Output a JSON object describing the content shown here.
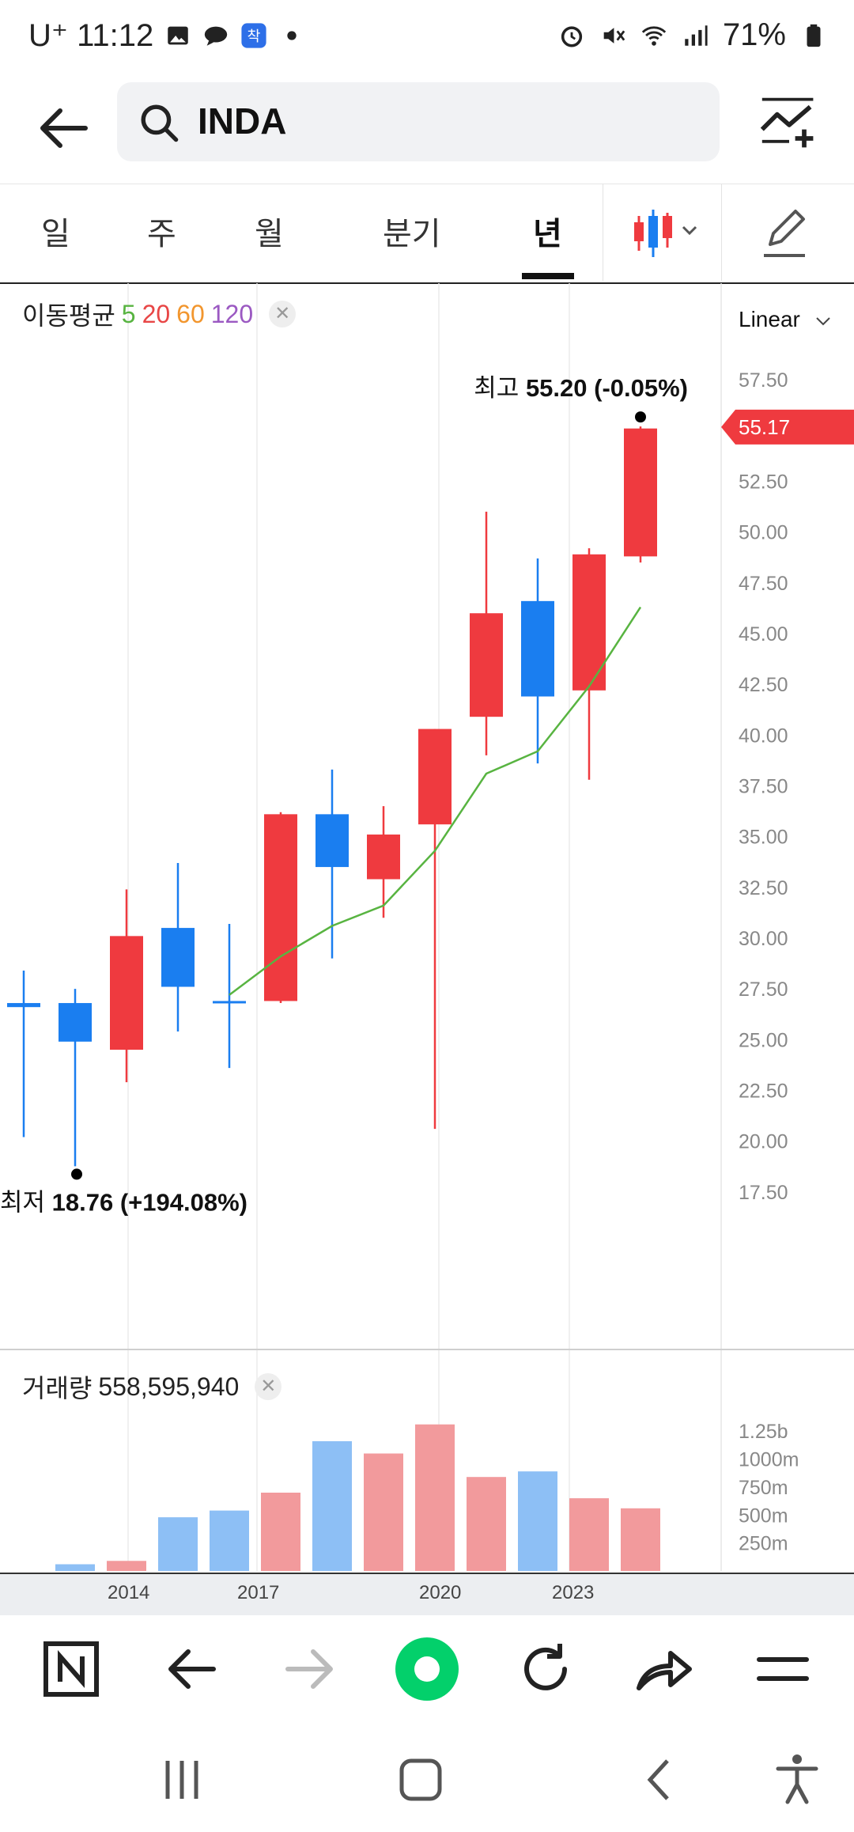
{
  "status": {
    "carrier": "U⁺ 11:12",
    "battery": "71%",
    "colors": {
      "text": "#222222"
    }
  },
  "search": {
    "query": "INDA"
  },
  "periods": [
    {
      "label": "일",
      "active": false
    },
    {
      "label": "주",
      "active": false
    },
    {
      "label": "월",
      "active": false
    },
    {
      "label": "분기",
      "active": false
    },
    {
      "label": "년",
      "active": true
    }
  ],
  "ma_legend": {
    "label": "이동평균",
    "p5": "5",
    "p20": "20",
    "p60": "60",
    "p120": "120",
    "colors": {
      "ma5": "#58b441",
      "ma20": "#e84646",
      "ma60": "#f2962e",
      "ma120": "#9b59c2"
    }
  },
  "scale_mode": "Linear",
  "price_annotations": {
    "high_label": "최고",
    "high_value": "55.20 (-0.05%)",
    "low_label": "최저",
    "low_value": "18.76 (+194.08%)",
    "current_price": "55.17"
  },
  "volume_legend": {
    "label": "거래량",
    "value": "558,595,940"
  },
  "x_axis_labels": [
    "2014",
    "2017",
    "2020",
    "2023"
  ],
  "chart_data": {
    "type": "candlestick",
    "colors": {
      "up": "#ef3a3f",
      "down": "#1a7ef0",
      "ma5": "#58b441",
      "vol_up": "#f29a9c",
      "vol_down": "#8dbff5"
    },
    "price_axis": {
      "ticks": [
        "17.50",
        "20.00",
        "22.50",
        "25.00",
        "27.50",
        "30.00",
        "32.50",
        "35.00",
        "37.50",
        "40.00",
        "42.50",
        "45.00",
        "47.50",
        "50.00",
        "52.50",
        "55.00",
        "57.50"
      ],
      "ylim": [
        16.75,
        58.75
      ]
    },
    "candles": [
      {
        "open": 26.8,
        "close": 26.6,
        "high": 28.4,
        "low": 20.2
      },
      {
        "open": 26.8,
        "close": 24.9,
        "high": 27.5,
        "low": 18.76
      },
      {
        "open": 24.5,
        "close": 30.1,
        "high": 32.4,
        "low": 22.9
      },
      {
        "open": 30.5,
        "close": 27.6,
        "high": 33.7,
        "low": 25.4
      },
      {
        "open": 26.9,
        "close": 26.8,
        "high": 30.7,
        "low": 23.6
      },
      {
        "open": 26.9,
        "close": 36.1,
        "high": 36.2,
        "low": 26.8
      },
      {
        "open": 36.1,
        "close": 33.5,
        "high": 38.3,
        "low": 29.0
      },
      {
        "open": 32.9,
        "close": 35.1,
        "high": 36.5,
        "low": 31.0
      },
      {
        "open": 35.6,
        "close": 40.3,
        "high": 40.3,
        "low": 20.6
      },
      {
        "open": 40.9,
        "close": 46.0,
        "high": 51.0,
        "low": 39.0
      },
      {
        "open": 46.6,
        "close": 41.9,
        "high": 48.7,
        "low": 38.6
      },
      {
        "open": 42.2,
        "close": 48.9,
        "high": 49.2,
        "low": 37.8
      },
      {
        "open": 48.8,
        "close": 55.1,
        "high": 55.2,
        "low": 48.5
      }
    ],
    "ma5": [
      null,
      null,
      null,
      null,
      27.2,
      29.1,
      30.6,
      31.6,
      34.3,
      38.1,
      39.2,
      42.4,
      46.3
    ],
    "volume_axis": {
      "ticks": [
        "250m",
        "500m",
        "750m",
        "1000m",
        "1.25b"
      ],
      "ylim": [
        0,
        1400
      ]
    },
    "volume": [
      null,
      60,
      90,
      480,
      540,
      700,
      1160,
      1050,
      1310,
      840,
      890,
      650,
      560
    ]
  }
}
